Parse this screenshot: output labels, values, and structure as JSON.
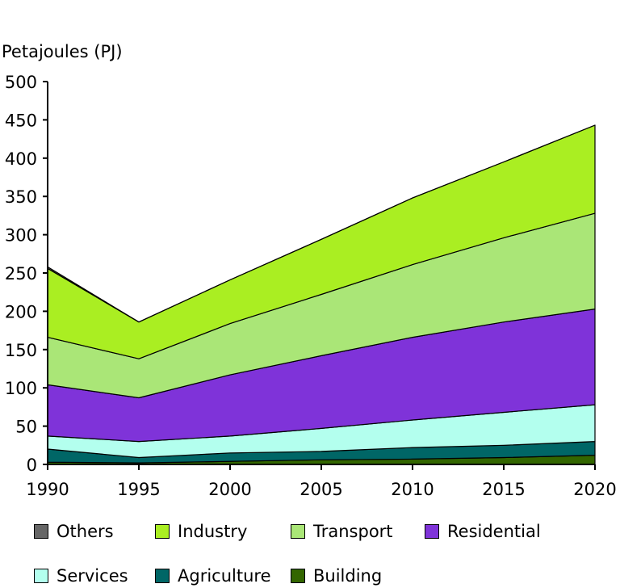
{
  "chart_data": {
    "type": "area",
    "stacked": true,
    "ylabel": "Petajoules (PJ)",
    "xlabel": "",
    "title": "",
    "x": [
      1990,
      1995,
      2000,
      2005,
      2010,
      2015,
      2020
    ],
    "xticks": [
      "1990",
      "1995",
      "2000",
      "2005",
      "2010",
      "2015",
      "2020"
    ],
    "ylim": [
      0,
      500
    ],
    "yticks": [
      "0",
      "50",
      "100",
      "150",
      "200",
      "250",
      "300",
      "350",
      "400",
      "450",
      "500"
    ],
    "series": [
      {
        "name": "Building",
        "color": "#336600",
        "values": [
          3,
          2,
          4,
          6,
          7,
          9,
          12
        ]
      },
      {
        "name": "Agriculture",
        "color": "#006666",
        "values": [
          17,
          7,
          11,
          11,
          15,
          16,
          18
        ]
      },
      {
        "name": "Services",
        "color": "#b3ffee",
        "values": [
          17,
          21,
          22,
          30,
          36,
          43,
          48
        ]
      },
      {
        "name": "Residential",
        "color": "#7f33d9",
        "values": [
          67,
          57,
          80,
          95,
          108,
          118,
          125
        ]
      },
      {
        "name": "Transport",
        "color": "#aae677",
        "values": [
          62,
          51,
          67,
          80,
          95,
          110,
          125
        ]
      },
      {
        "name": "Industry",
        "color": "#aaee22",
        "values": [
          90,
          48,
          57,
          72,
          87,
          99,
          115
        ]
      },
      {
        "name": "Others",
        "color": "#666666",
        "values": [
          2,
          0,
          0,
          0,
          0,
          0,
          0
        ]
      }
    ],
    "legend": [
      {
        "label": "Others",
        "color": "#666666"
      },
      {
        "label": "Industry",
        "color": "#aaee22"
      },
      {
        "label": "Transport",
        "color": "#aae677"
      },
      {
        "label": "Residential",
        "color": "#7f33d9"
      },
      {
        "label": "Services",
        "color": "#b3ffee"
      },
      {
        "label": "Agriculture",
        "color": "#006666"
      },
      {
        "label": "Building",
        "color": "#336600"
      }
    ]
  }
}
